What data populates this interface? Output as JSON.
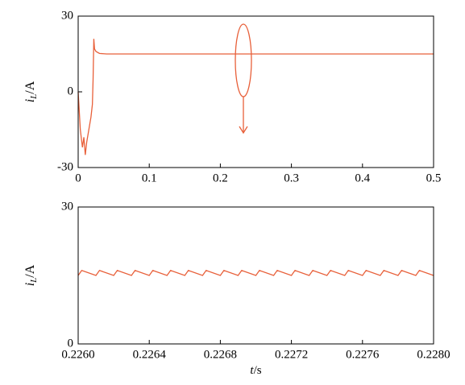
{
  "chart_data": [
    {
      "type": "line",
      "x": [
        0,
        0.003,
        0.006,
        0.008,
        0.01,
        0.012,
        0.015,
        0.018,
        0.02,
        0.021,
        0.022,
        0.023,
        0.025,
        0.03,
        0.04,
        0.1,
        0.2,
        0.3,
        0.4,
        0.5
      ],
      "series": [
        {
          "color": "#e8603a",
          "values": [
            0,
            -15,
            -22,
            -18,
            -25,
            -20,
            -15,
            -10,
            -5,
            5,
            21,
            17,
            16,
            15.2,
            15,
            15,
            15,
            15,
            15,
            15
          ]
        }
      ],
      "xlim": [
        0,
        0.5
      ],
      "xticks": [
        0,
        0.1,
        0.2,
        0.3,
        0.4,
        0.5
      ],
      "ylim": [
        -30,
        30
      ],
      "yticks": [
        -30,
        0,
        30
      ],
      "ylabel": [
        "i",
        "L",
        "/A"
      ]
    },
    {
      "type": "line",
      "x": [
        0.226,
        0.22602,
        0.2261,
        0.22612,
        0.2262,
        0.22622,
        0.2263,
        0.22632,
        0.2264,
        0.22642,
        0.2265,
        0.22652,
        0.2266,
        0.22662,
        0.2267,
        0.22672,
        0.2268,
        0.22682,
        0.2269,
        0.22692,
        0.227,
        0.22702,
        0.2271,
        0.22712,
        0.2272,
        0.22722,
        0.2273,
        0.22732,
        0.2274,
        0.22742,
        0.2275,
        0.22752,
        0.2276,
        0.22762,
        0.2277,
        0.22772,
        0.2278,
        0.22782,
        0.2279,
        0.22792,
        0.228
      ],
      "series": [
        {
          "color": "#e8603a",
          "values": [
            15,
            16.1,
            15,
            16.1,
            15,
            16.1,
            15,
            16.1,
            15,
            16.1,
            15,
            16.1,
            15,
            16.1,
            15,
            16.1,
            15,
            16.1,
            15,
            16.1,
            15,
            16.1,
            15,
            16.1,
            15,
            16.1,
            15,
            16.1,
            15,
            16.1,
            15,
            16.1,
            15,
            16.1,
            15,
            16.1,
            15,
            16.1,
            15,
            16.1,
            15
          ]
        }
      ],
      "xlim": [
        0.226,
        0.228
      ],
      "xticks": [
        {
          "value": 0.226,
          "label": "0.2260"
        },
        {
          "value": 0.2264,
          "label": "0.2264"
        },
        {
          "value": 0.2268,
          "label": "0.2268"
        },
        {
          "value": 0.2272,
          "label": "0.2272"
        },
        {
          "value": 0.2276,
          "label": "0.2276"
        },
        {
          "value": 0.228,
          "label": "0.2280"
        }
      ],
      "ylim": [
        0,
        30
      ],
      "yticks": [
        0,
        30
      ],
      "ylabel": [
        "i",
        "L",
        "/A"
      ],
      "xlabel": [
        "t",
        "/s"
      ]
    }
  ]
}
